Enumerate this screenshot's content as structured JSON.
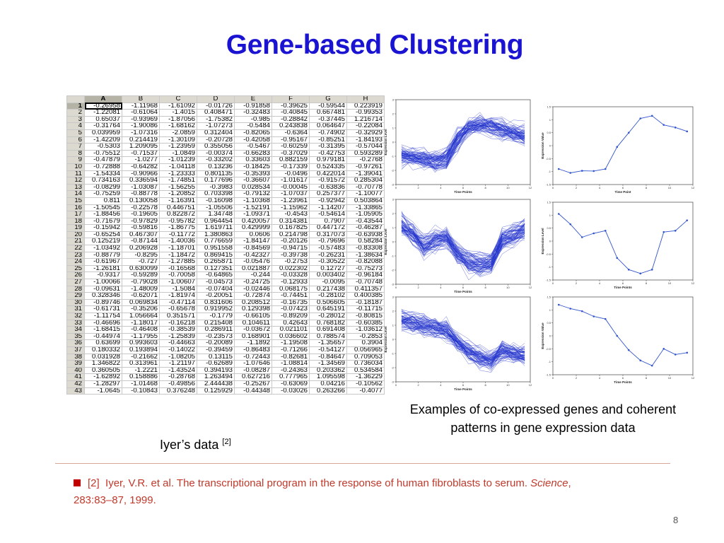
{
  "slide": {
    "title": "Gene-based Clustering",
    "caption_line1": "Examples of co-expressed genes and coherent",
    "caption_line2": "patterns in gene expression data",
    "iyer_label": "Iyer’s data ",
    "iyer_ref": "[2]",
    "reference_number": "[2]",
    "reference_text": "Iyer, V.R. et al. The transcriptional program in the response of human fibroblasts to serum. ",
    "reference_journal": "Science",
    "reference_tail": ",",
    "reference_line2": "283:83–87, 1999.",
    "page_number": "8"
  },
  "spreadsheet": {
    "columns": [
      "A",
      "B",
      "C",
      "D",
      "E",
      "F",
      "G",
      "H"
    ],
    "rows": [
      [
        "1",
        "-0.26958",
        "-1.11968",
        "-1.61092",
        "-0.01726",
        "-0.91858",
        "-0.39625",
        "-0.59544",
        "0.223919"
      ],
      [
        "2",
        "-1.22081",
        "-0.61064",
        "-1.4015",
        "0.408471",
        "-0.32483",
        "-0.40845",
        "0.667481",
        "-0.99353"
      ],
      [
        "3",
        "0.65037",
        "-0.93969",
        "-1.87056",
        "-1.75382",
        "-0.985",
        "-0.28842",
        "-0.37445",
        "1.216714"
      ],
      [
        "4",
        "-0.31764",
        "-1.90086",
        "-1.68162",
        "-1.07273",
        "-0.5484",
        "0.243838",
        "0.064647",
        "-0.22084"
      ],
      [
        "5",
        "0.039959",
        "-1.07316",
        "-2.0859",
        "0.312404",
        "-0.82065",
        "-0.6364",
        "-0.74902",
        "-0.32929"
      ],
      [
        "6",
        "-1.42209",
        "0.214419",
        "-1.30109",
        "-0.20728",
        "-0.42058",
        "-0.95167",
        "-0.85251",
        "-1.84193"
      ],
      [
        "7",
        "-0.5303",
        "1.209095",
        "-1.23959",
        "0.355056",
        "-0.5467",
        "-0.60259",
        "-0.31395",
        "-0.57044"
      ],
      [
        "8",
        "-0.75512",
        "-0.71537",
        "-1.0849",
        "-0.00374",
        "-0.66283",
        "-0.37029",
        "-0.42753",
        "0.593289"
      ],
      [
        "9",
        "-0.47879",
        "-1.0277",
        "-1.01239",
        "-0.33202",
        "0.33603",
        "0.882159",
        "0.979181",
        "-0.2768"
      ],
      [
        "10",
        "-0.72888",
        "-0.64282",
        "-1.04118",
        "0.13236",
        "-0.18425",
        "-0.17339",
        "0.524335",
        "-0.97261"
      ],
      [
        "11",
        "-1.54334",
        "-0.90966",
        "-1.23333",
        "0.801135",
        "-0.35393",
        "-0.0496",
        "0.422014",
        "-1.39041"
      ],
      [
        "12",
        "0.734163",
        "0.336594",
        "-1.74851",
        "0.177696",
        "-0.36607",
        "-1.01617",
        "-0.91572",
        "0.285304"
      ],
      [
        "13",
        "-0.08299",
        "-1.03087",
        "-1.56255",
        "-0.3983",
        "0.028534",
        "-0.00045",
        "-0.63836",
        "-0.70778"
      ],
      [
        "14",
        "-0.75259",
        "-0.88778",
        "-1.20852",
        "0.703398",
        "-0.79132",
        "-1.07037",
        "0.257377",
        "-1.10077"
      ],
      [
        "15",
        "0.811",
        "0.130058",
        "-1.16391",
        "-0.16098",
        "-1.10368",
        "-1.23961",
        "-0.92942",
        "0.503864"
      ],
      [
        "16",
        "-1.50545",
        "-0.22578",
        "0.446751",
        "-1.05506",
        "-1.52191",
        "-1.15962",
        "-1.14207",
        "-1.33865"
      ],
      [
        "17",
        "-1.88456",
        "-0.19605",
        "0.822872",
        "1.34748",
        "-1.09371",
        "-0.4543",
        "-0.54614",
        "-1.05905"
      ],
      [
        "18",
        "-0.71679",
        "-0.97829",
        "-0.95782",
        "0.964454",
        "0.420057",
        "0.314381",
        "0.7907",
        "-0.43544"
      ],
      [
        "19",
        "-0.15942",
        "-0.59816",
        "-1.86775",
        "1.619711",
        "0.429999",
        "0.167825",
        "0.447172",
        "-0.46287"
      ],
      [
        "20",
        "-0.65254",
        "0.467307",
        "-0.11772",
        "1.380863",
        "0.0606",
        "0.214798",
        "0.317073",
        "-0.63938"
      ],
      [
        "21",
        "0.125219",
        "-0.87144",
        "-1.40036",
        "0.776659",
        "-1.84147",
        "-0.20126",
        "-0.79696",
        "0.58284"
      ],
      [
        "22",
        "-1.03492",
        "0.206928",
        "-1.18701",
        "0.951558",
        "-0.84569",
        "-0.94715",
        "-0.57483",
        "-0.83308"
      ],
      [
        "23",
        "-0.88779",
        "-0.8295",
        "-1.18472",
        "0.869415",
        "-0.42327",
        "-0.39738",
        "-0.26231",
        "-1.38634"
      ],
      [
        "24",
        "-0.61967",
        "-0.727",
        "-1.27885",
        "0.265871",
        "-0.05476",
        "-0.2753",
        "-0.30522",
        "-0.82088"
      ],
      [
        "25",
        "-1.26181",
        "0.630099",
        "-0.16568",
        "0.127351",
        "0.021887",
        "0.022302",
        "0.12727",
        "-0.75273"
      ],
      [
        "26",
        "-0.9317",
        "-0.59289",
        "-0.70058",
        "-0.64865",
        "-0.244",
        "-0.03328",
        "0.003402",
        "-0.96184"
      ],
      [
        "27",
        "-1.00066",
        "-0.79028",
        "-1.00607",
        "-0.04573",
        "-0.24725",
        "-0.12933",
        "-0.0095",
        "-0.70748"
      ],
      [
        "28",
        "-0.09631",
        "-1.48009",
        "-1.5084",
        "-0.07404",
        "-0.02446",
        "0.068175",
        "0.217438",
        "0.411357"
      ],
      [
        "29",
        "0.328346",
        "-0.62071",
        "-1.81974",
        "-0.20051",
        "-0.72874",
        "-0.74451",
        "-0.28102",
        "0.400385"
      ],
      [
        "30",
        "-0.89746",
        "0.069834",
        "-0.47114",
        "0.831606",
        "0.208512",
        "-0.16735",
        "0.506605",
        "-0.18187"
      ],
      [
        "31",
        "-0.61731",
        "-0.35206",
        "-0.65678",
        "0.919952",
        "0.129398",
        "-0.07423",
        "0.645191",
        "-0.11715"
      ],
      [
        "32",
        "-1.11754",
        "1.056664",
        "0.351571",
        "-0.1779",
        "-0.66105",
        "-0.89209",
        "-0.28012",
        "-0.80815"
      ],
      [
        "33",
        "-0.46696",
        "-1.18017",
        "-0.16218",
        "0.215408",
        "0.104611",
        "0.42643",
        "0.768182",
        "-0.60385"
      ],
      [
        "34",
        "-1.68415",
        "-0.46408",
        "-0.38539",
        "0.286911",
        "-0.03672",
        "0.021101",
        "0.691408",
        "-1.03612"
      ],
      [
        "35",
        "-0.44974",
        "-1.17955",
        "-1.25839",
        "-0.23573",
        "0.168901",
        "0.036602",
        "0.788574",
        "-0.2853"
      ],
      [
        "36",
        "0.63699",
        "0.993603",
        "-0.44663",
        "-0.20089",
        "-1.1892",
        "-1.19508",
        "-1.35657",
        "0.3904"
      ],
      [
        "37",
        "0.180332",
        "0.193894",
        "-0.14022",
        "-0.39459",
        "-0.86483",
        "-0.71266",
        "-0.54127",
        "0.056965"
      ],
      [
        "38",
        "0.031928",
        "-0.21662",
        "-1.08205",
        "0.13115",
        "-0.72443",
        "-0.82681",
        "-0.84647",
        "0.709053"
      ],
      [
        "39",
        "1.346822",
        "0.313961",
        "-1.21197",
        "-0.62689",
        "-1.07646",
        "-1.08814",
        "-1.34569",
        "0.736034"
      ],
      [
        "40",
        "0.360505",
        "-1.2221",
        "-1.43524",
        "0.394193",
        "-0.08287",
        "-0.24363",
        "0.203362",
        "0.534584"
      ],
      [
        "41",
        "-1.62892",
        "0.158886",
        "-0.28768",
        "1.263494",
        "0.627216",
        "0.777965",
        "1.095598",
        "-1.36229"
      ],
      [
        "42",
        "-1.28297",
        "-1.01468",
        "-0.49856",
        "2.444438",
        "-0.25267",
        "-0.63069",
        "0.04216",
        "-0.10562"
      ],
      [
        "43",
        "-1.0645",
        "-0.10843",
        "0.376248",
        "0.125929",
        "-0.44348",
        "-0.03026",
        "0.263266",
        "-0.4077"
      ]
    ]
  },
  "cluster_plots": [
    {
      "x_label": "Time Points",
      "y_label": "Expression Level",
      "x_ticks": [
        "0",
        "2",
        "4",
        "6",
        "8",
        "10",
        "12"
      ],
      "y_ticks": [
        "3",
        "2",
        "1",
        "0",
        "-1",
        "-2",
        "-3"
      ],
      "profile": [
        -0.9,
        -1.0,
        -1.2,
        -1.4,
        -1.1,
        0.2,
        1.0,
        1.3,
        1.1,
        0.9,
        0.7,
        0.5
      ],
      "color": "#2233cc"
    },
    {
      "x_label": "Time Point",
      "y_label": "Expression Value",
      "x_ticks": [
        "0",
        "2",
        "4",
        "6",
        "8",
        "10",
        "12"
      ],
      "y_ticks": [
        "1.5",
        "1",
        "0.5",
        "0",
        "-0.5",
        "-1",
        "-1.5"
      ],
      "y_range": [
        -1.5,
        1.5
      ],
      "series": [
        -0.9,
        -1.05,
        -0.97,
        -0.98,
        -0.9,
        -0.05,
        0.5,
        1.05,
        1.15,
        0.8,
        0.7,
        0.55
      ],
      "color": "#3355cc"
    },
    {
      "x_label": "Time Points",
      "y_label": "Expression Level",
      "x_ticks": [
        "0",
        "2",
        "4",
        "6",
        "8",
        "10",
        "12"
      ],
      "y_ticks": [
        "3",
        "2",
        "1",
        "0",
        "-1",
        "-2",
        "-3"
      ],
      "profile": [
        1.2,
        0.6,
        -0.3,
        0.2,
        0.3,
        -0.8,
        -1.4,
        -1.6,
        -1.5,
        0.1,
        0.5,
        0.9
      ],
      "color": "#2233cc"
    },
    {
      "x_label": "Time Points",
      "y_label": "Expression Level",
      "x_ticks": [
        "0",
        "2",
        "4",
        "6",
        "8",
        "10",
        "12"
      ],
      "y_ticks": [
        "1.5",
        "1",
        "0.5",
        "0",
        "-0.5",
        "-1",
        "-1.5"
      ],
      "y_range": [
        -1.5,
        1.5
      ],
      "series": [
        1.05,
        0.65,
        0.15,
        0.3,
        0.4,
        -0.65,
        -1.1,
        -1.25,
        -1.1,
        0.35,
        0.4,
        0.8
      ],
      "color": "#3355cc"
    },
    {
      "x_label": "Time Points",
      "y_label": "Expression Level",
      "x_ticks": [
        "0",
        "2",
        "4",
        "6",
        "8",
        "10",
        "12"
      ],
      "y_ticks": [
        "3",
        "2",
        "1",
        "0",
        "-1",
        "-2",
        "-3"
      ],
      "profile": [
        1.4,
        1.2,
        1.0,
        0.8,
        0.6,
        -0.2,
        -0.9,
        -1.3,
        -1.5,
        -0.8,
        -1.0,
        -1.1
      ],
      "color": "#2233cc"
    },
    {
      "x_label": "Time Points",
      "y_label": "Expression Value",
      "x_ticks": [
        "0",
        "2",
        "4",
        "6",
        "8",
        "10",
        "12"
      ],
      "y_ticks": [
        "1.5",
        "1",
        "0.5",
        "0",
        "-0.5",
        "-1",
        "-1.5"
      ],
      "y_range": [
        -1.5,
        1.5
      ],
      "series": [
        1.2,
        1.05,
        0.95,
        0.75,
        0.65,
        0.0,
        -0.55,
        -0.95,
        -1.15,
        -0.5,
        -0.72,
        -0.65
      ],
      "color": "#3355cc"
    }
  ]
}
